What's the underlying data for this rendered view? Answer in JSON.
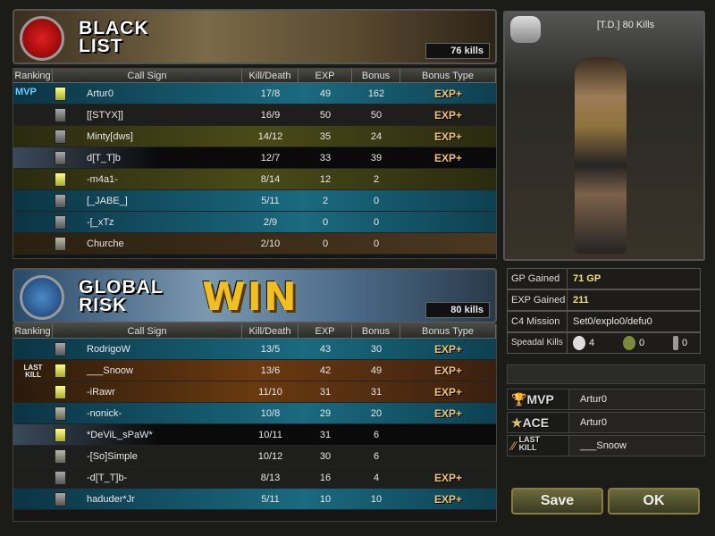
{
  "team1": {
    "name_line1": "BLACK",
    "name_line2": "LIST",
    "kills": "76 kills"
  },
  "team2": {
    "name_line1": "GLOBAL",
    "name_line2": "RISK",
    "kills": "80 kills",
    "result": "WIN"
  },
  "columns": [
    "Ranking",
    "Call Sign",
    "Kill/Death",
    "EXP",
    "Bonus",
    "Bonus Type"
  ],
  "team1_rows": [
    {
      "badge": "MVP",
      "rank_icon": "rank-yellow",
      "name": "Artur0",
      "kd": "17/8",
      "exp": "49",
      "bonus": "162",
      "bonus_type": "EXP+",
      "style": "teal"
    },
    {
      "badge": "",
      "rank_icon": "rank-silver",
      "name": "[[STYX]]",
      "kd": "16/9",
      "exp": "50",
      "bonus": "50",
      "bonus_type": "EXP+",
      "style": "dark"
    },
    {
      "badge": "",
      "rank_icon": "rank-silver",
      "name": "Minty[dws]",
      "kd": "14/12",
      "exp": "35",
      "bonus": "24",
      "bonus_type": "EXP+",
      "style": "olive"
    },
    {
      "badge": "",
      "rank_icon": "rank-star",
      "name": "d[T_T]b",
      "kd": "12/7",
      "exp": "33",
      "bonus": "39",
      "bonus_type": "EXP+",
      "style": "black"
    },
    {
      "badge": "",
      "rank_icon": "rank-yellow",
      "name": "-m4a1-",
      "kd": "8/14",
      "exp": "12",
      "bonus": "2",
      "bonus_type": "",
      "style": "olive"
    },
    {
      "badge": "",
      "rank_icon": "rank-silver",
      "name": "[_JABE_]",
      "kd": "5/11",
      "exp": "2",
      "bonus": "0",
      "bonus_type": "",
      "style": "teal"
    },
    {
      "badge": "",
      "rank_icon": "rank-silver",
      "name": "-[_xTz",
      "kd": "2/9",
      "exp": "0",
      "bonus": "0",
      "bonus_type": "",
      "style": "teal"
    },
    {
      "badge": "",
      "rank_icon": "rank-sergeant",
      "name": "Churche",
      "kd": "2/10",
      "exp": "0",
      "bonus": "0",
      "bonus_type": "",
      "style": "mod"
    }
  ],
  "team2_rows": [
    {
      "badge": "",
      "rank_icon": "rank-silver",
      "name": "RodrigoW",
      "kd": "13/5",
      "exp": "43",
      "bonus": "30",
      "bonus_type": "EXP+",
      "style": "teal"
    },
    {
      "badge": "LAST KILL",
      "rank_icon": "rank-yellow",
      "name": "___Snoow",
      "kd": "13/6",
      "exp": "42",
      "bonus": "49",
      "bonus_type": "EXP+",
      "style": "brown"
    },
    {
      "badge": "",
      "rank_icon": "rank-yellow",
      "name": "-iRawr",
      "kd": "11/10",
      "exp": "31",
      "bonus": "31",
      "bonus_type": "EXP+",
      "style": "brown"
    },
    {
      "badge": "",
      "rank_icon": "rank-sergeant",
      "name": "-nonick-",
      "kd": "10/8",
      "exp": "29",
      "bonus": "20",
      "bonus_type": "EXP+",
      "style": "teal"
    },
    {
      "badge": "",
      "rank_icon": "rank-yellow",
      "name": "*DeViL_sPaW*",
      "kd": "10/11",
      "exp": "31",
      "bonus": "6",
      "bonus_type": "",
      "style": "black"
    },
    {
      "badge": "",
      "rank_icon": "rank-sergeant",
      "name": "-[So]Simple",
      "kd": "10/12",
      "exp": "30",
      "bonus": "6",
      "bonus_type": "",
      "style": "dark"
    },
    {
      "badge": "",
      "rank_icon": "rank-silver",
      "name": "-d[T_T]b-",
      "kd": "8/13",
      "exp": "16",
      "bonus": "4",
      "bonus_type": "EXP+",
      "style": "dark"
    },
    {
      "badge": "",
      "rank_icon": "rank-silver",
      "name": "haduder*Jr",
      "kd": "5/11",
      "exp": "10",
      "bonus": "10",
      "bonus_type": "EXP+",
      "style": "teal"
    }
  ],
  "player": {
    "title": "[T.D.] 80 Kills"
  },
  "stats": {
    "gp_label": "GP Gained",
    "gp_value": "71 GP",
    "exp_label": "EXP Gained",
    "exp_value": "211",
    "c4_label": "C4 Mission",
    "c4_value": "Set0/explo0/defu0",
    "special_label": "Speadal Kills",
    "headshot": "4",
    "grenade": "0",
    "knife": "0"
  },
  "awards": {
    "mvp_label": "MVP",
    "mvp": "Artur0",
    "ace_label": "ACE",
    "ace": "Artur0",
    "last_label": "LAST KILL",
    "last": "___Snoow"
  },
  "buttons": {
    "save": "Save",
    "ok": "OK"
  }
}
